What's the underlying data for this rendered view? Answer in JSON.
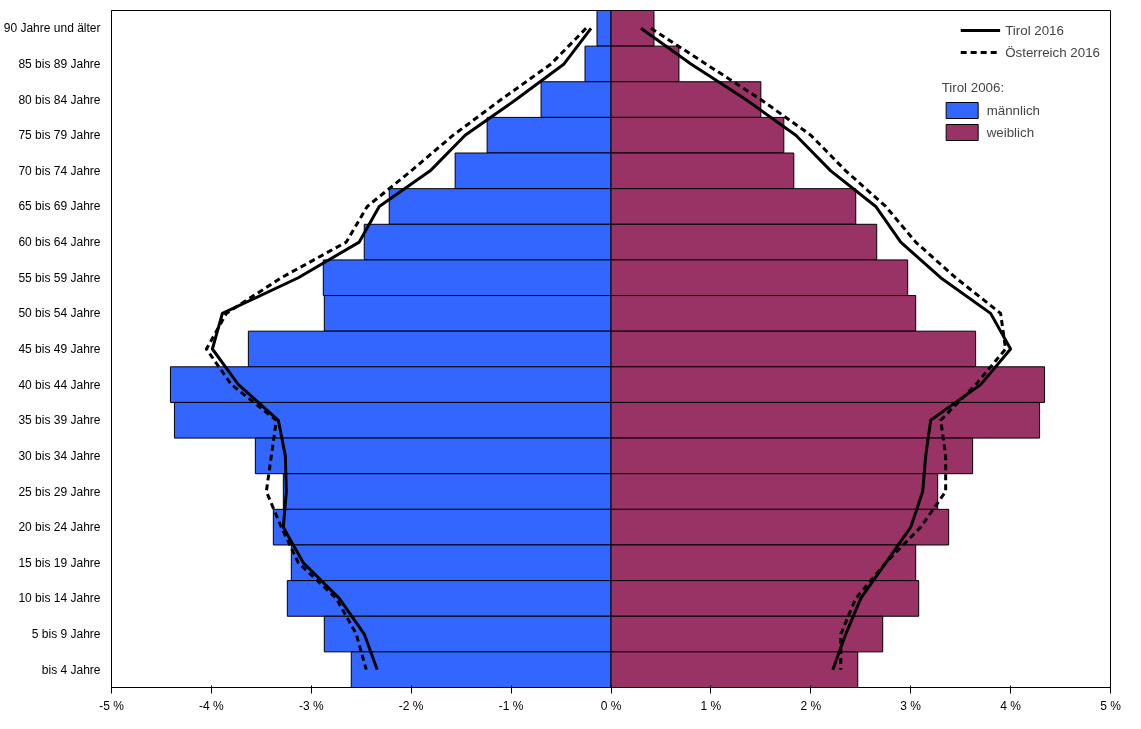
{
  "chart_data": {
    "type": "bar",
    "orientation": "horizontal",
    "stacked": true,
    "legend": "top right",
    "legend_title": "Tirol 2006:",
    "grid": false,
    "categories": [
      "90 Jahre und älter",
      "85 bis 89 Jahre",
      "80 bis 84 Jahre",
      "75 bis 79 Jahre",
      "70 bis 74 Jahre",
      "65 bis 69 Jahre",
      "60 bis 64 Jahre",
      "55 bis 59 Jahre",
      "50 bis 54 Jahre",
      "45 bis 49 Jahre",
      "40 bis 44 Jahre",
      "35 bis 39 Jahre",
      "30 bis 34 Jahre",
      "25 bis 29 Jahre",
      "20 bis 24 Jahre",
      "15 bis 19 Jahre",
      "10 bis 14 Jahre",
      "5 bis 9 Jahre",
      "bis 4 Jahre"
    ],
    "xlim": [
      -5,
      5
    ],
    "xticks": [
      {
        "value": -5,
        "label": "-5 %"
      },
      {
        "value": -4,
        "label": "-4 %"
      },
      {
        "value": -3,
        "label": "-3 %"
      },
      {
        "value": -2,
        "label": "-2 %"
      },
      {
        "value": -1,
        "label": "-1 %"
      },
      {
        "value": 0,
        "label": "0 %"
      },
      {
        "value": 1,
        "label": "1 %"
      },
      {
        "value": 2,
        "label": "2 %"
      },
      {
        "value": 3,
        "label": "3 %"
      },
      {
        "value": 4,
        "label": "4 %"
      },
      {
        "value": 5,
        "label": "5 %"
      }
    ],
    "series": [
      {
        "name": "männlich",
        "color": "#3366ff",
        "values": [
          -0.14,
          -0.26,
          -0.7,
          -1.24,
          -1.56,
          -2.22,
          -2.47,
          -2.88,
          -2.87,
          -3.63,
          -4.41,
          -4.37,
          -3.56,
          -3.28,
          -3.38,
          -3.2,
          -3.24,
          -2.87,
          -2.6
        ]
      },
      {
        "name": "weiblich",
        "color": "#993366",
        "values": [
          0.43,
          0.68,
          1.5,
          1.73,
          1.83,
          2.45,
          2.66,
          2.97,
          3.05,
          3.65,
          4.34,
          4.29,
          3.62,
          3.27,
          3.38,
          3.05,
          3.08,
          2.72,
          2.47
        ]
      },
      {
        "name": "Tirol 2016",
        "type": "line",
        "line_style": "solid",
        "color": "#000000",
        "values": [
          -0.2,
          -0.47,
          -0.95,
          -1.46,
          -1.81,
          -2.32,
          -2.52,
          -3.13,
          -3.89,
          -3.99,
          -3.73,
          -3.33,
          -3.26,
          -3.25,
          -3.28,
          -3.08,
          -2.72,
          -2.47,
          -2.34
        ]
      },
      {
        "type": "line",
        "line_style": "solid",
        "color": "#000000",
        "values": [
          0.3,
          0.8,
          1.35,
          1.85,
          2.2,
          2.65,
          2.9,
          3.3,
          3.8,
          4.0,
          3.7,
          3.2,
          3.15,
          3.12,
          3.0,
          2.75,
          2.5,
          2.35,
          2.22
        ]
      },
      {
        "name": "Österreich 2016",
        "type": "line",
        "line_style": "dashed",
        "color": "#000000",
        "values": [
          -0.25,
          -0.6,
          -1.1,
          -1.58,
          -2.0,
          -2.44,
          -2.65,
          -3.3,
          -3.85,
          -4.05,
          -3.8,
          -3.35,
          -3.4,
          -3.45,
          -3.3,
          -3.13,
          -2.75,
          -2.55,
          -2.45
        ]
      },
      {
        "type": "line",
        "line_style": "dashed",
        "color": "#000000",
        "values": [
          0.4,
          0.95,
          1.5,
          2.0,
          2.35,
          2.75,
          3.05,
          3.45,
          3.9,
          3.95,
          3.65,
          3.3,
          3.35,
          3.35,
          3.1,
          2.75,
          2.45,
          2.3,
          2.3
        ]
      }
    ]
  }
}
